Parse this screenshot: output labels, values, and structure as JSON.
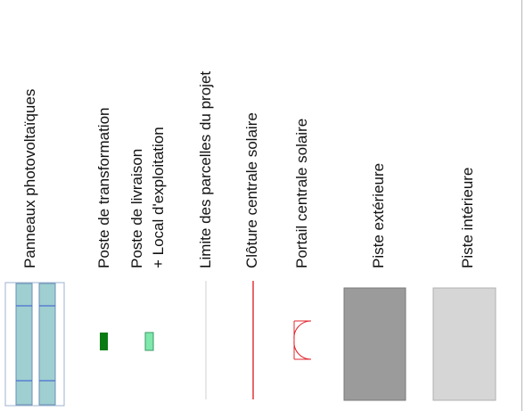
{
  "legend": {
    "items": [
      {
        "id": "panneaux",
        "label": "Panneaux photovoltaïques"
      },
      {
        "id": "transformation",
        "label": "Poste de transformation"
      },
      {
        "id": "livraison",
        "label": "Poste de livraison",
        "label2": "+ Local d'exploitation"
      },
      {
        "id": "limite",
        "label": "Limite des parcelles du projet"
      },
      {
        "id": "cloture",
        "label": "Clôture centrale solaire"
      },
      {
        "id": "portail",
        "label": "Portail centrale solaire"
      },
      {
        "id": "piste-ext",
        "label": "Piste extérieure"
      },
      {
        "id": "piste-int",
        "label": "Piste intérieure"
      }
    ]
  },
  "colors": {
    "panel_fill": "#9fcfd1",
    "panel_frame": "#6a8fb5",
    "transformation": "#0a7a12",
    "livraison": "#7fe8ad",
    "limite": "#d9d9d9",
    "cloture": "#e0272f",
    "portail": "#e0272f",
    "piste_ext": "#9b9b9b",
    "piste_int": "#d6d6d6"
  }
}
